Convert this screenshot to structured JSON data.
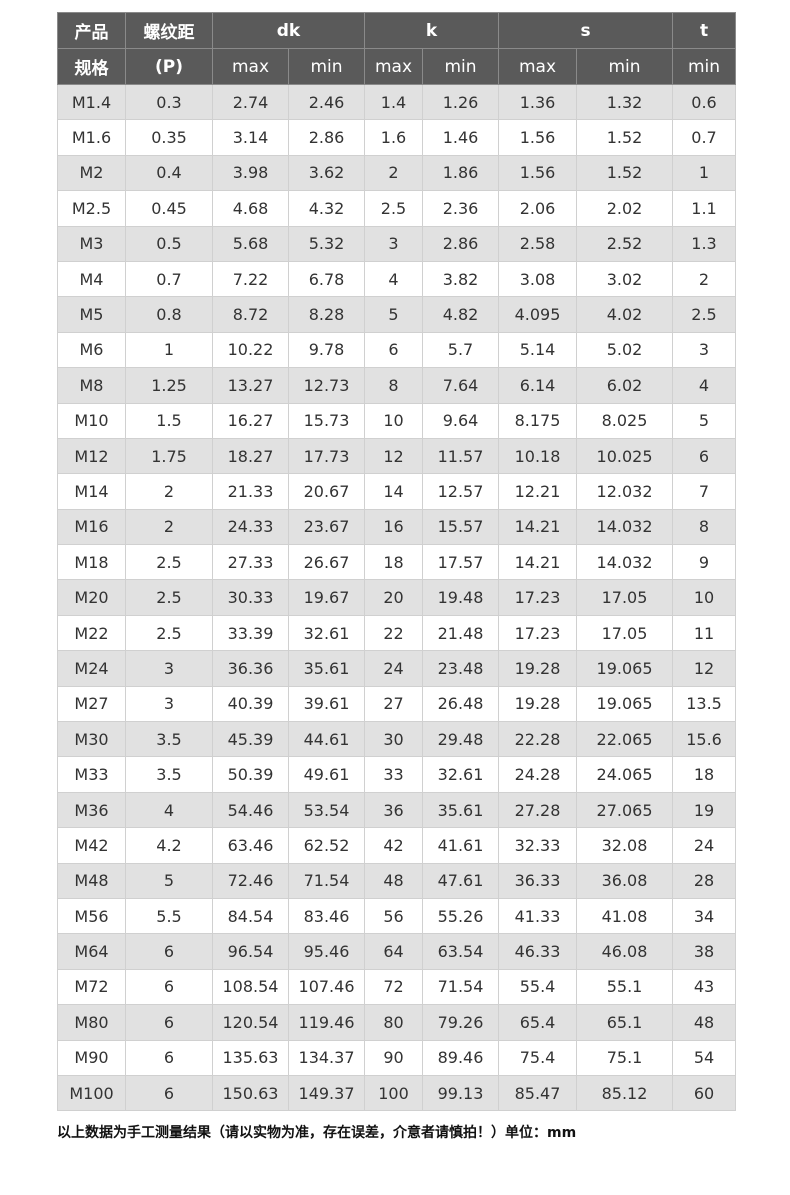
{
  "header": {
    "spec": "产品规格",
    "spec1": "产品",
    "spec2": "规格",
    "pitch1": "螺纹距",
    "pitch2": "(P)",
    "dk": "dk",
    "k": "k",
    "s": "s",
    "t": "t",
    "sub": [
      "max",
      "min",
      "max",
      "min",
      "max",
      "min",
      "min"
    ]
  },
  "rows": [
    [
      "M1.4",
      "0.3",
      "2.74",
      "2.46",
      "1.4",
      "1.26",
      "1.36",
      "1.32",
      "0.6"
    ],
    [
      "M1.6",
      "0.35",
      "3.14",
      "2.86",
      "1.6",
      "1.46",
      "1.56",
      "1.52",
      "0.7"
    ],
    [
      "M2",
      "0.4",
      "3.98",
      "3.62",
      "2",
      "1.86",
      "1.56",
      "1.52",
      "1"
    ],
    [
      "M2.5",
      "0.45",
      "4.68",
      "4.32",
      "2.5",
      "2.36",
      "2.06",
      "2.02",
      "1.1"
    ],
    [
      "M3",
      "0.5",
      "5.68",
      "5.32",
      "3",
      "2.86",
      "2.58",
      "2.52",
      "1.3"
    ],
    [
      "M4",
      "0.7",
      "7.22",
      "6.78",
      "4",
      "3.82",
      "3.08",
      "3.02",
      "2"
    ],
    [
      "M5",
      "0.8",
      "8.72",
      "8.28",
      "5",
      "4.82",
      "4.095",
      "4.02",
      "2.5"
    ],
    [
      "M6",
      "1",
      "10.22",
      "9.78",
      "6",
      "5.7",
      "5.14",
      "5.02",
      "3"
    ],
    [
      "M8",
      "1.25",
      "13.27",
      "12.73",
      "8",
      "7.64",
      "6.14",
      "6.02",
      "4"
    ],
    [
      "M10",
      "1.5",
      "16.27",
      "15.73",
      "10",
      "9.64",
      "8.175",
      "8.025",
      "5"
    ],
    [
      "M12",
      "1.75",
      "18.27",
      "17.73",
      "12",
      "11.57",
      "10.18",
      "10.025",
      "6"
    ],
    [
      "M14",
      "2",
      "21.33",
      "20.67",
      "14",
      "12.57",
      "12.21",
      "12.032",
      "7"
    ],
    [
      "M16",
      "2",
      "24.33",
      "23.67",
      "16",
      "15.57",
      "14.21",
      "14.032",
      "8"
    ],
    [
      "M18",
      "2.5",
      "27.33",
      "26.67",
      "18",
      "17.57",
      "14.21",
      "14.032",
      "9"
    ],
    [
      "M20",
      "2.5",
      "30.33",
      "19.67",
      "20",
      "19.48",
      "17.23",
      "17.05",
      "10"
    ],
    [
      "M22",
      "2.5",
      "33.39",
      "32.61",
      "22",
      "21.48",
      "17.23",
      "17.05",
      "11"
    ],
    [
      "M24",
      "3",
      "36.36",
      "35.61",
      "24",
      "23.48",
      "19.28",
      "19.065",
      "12"
    ],
    [
      "M27",
      "3",
      "40.39",
      "39.61",
      "27",
      "26.48",
      "19.28",
      "19.065",
      "13.5"
    ],
    [
      "M30",
      "3.5",
      "45.39",
      "44.61",
      "30",
      "29.48",
      "22.28",
      "22.065",
      "15.6"
    ],
    [
      "M33",
      "3.5",
      "50.39",
      "49.61",
      "33",
      "32.61",
      "24.28",
      "24.065",
      "18"
    ],
    [
      "M36",
      "4",
      "54.46",
      "53.54",
      "36",
      "35.61",
      "27.28",
      "27.065",
      "19"
    ],
    [
      "M42",
      "4.2",
      "63.46",
      "62.52",
      "42",
      "41.61",
      "32.33",
      "32.08",
      "24"
    ],
    [
      "M48",
      "5",
      "72.46",
      "71.54",
      "48",
      "47.61",
      "36.33",
      "36.08",
      "28"
    ],
    [
      "M56",
      "5.5",
      "84.54",
      "83.46",
      "56",
      "55.26",
      "41.33",
      "41.08",
      "34"
    ],
    [
      "M64",
      "6",
      "96.54",
      "95.46",
      "64",
      "63.54",
      "46.33",
      "46.08",
      "38"
    ],
    [
      "M72",
      "6",
      "108.54",
      "107.46",
      "72",
      "71.54",
      "55.4",
      "55.1",
      "43"
    ],
    [
      "M80",
      "6",
      "120.54",
      "119.46",
      "80",
      "79.26",
      "65.4",
      "65.1",
      "48"
    ],
    [
      "M90",
      "6",
      "135.63",
      "134.37",
      "90",
      "89.46",
      "75.4",
      "75.1",
      "54"
    ],
    [
      "M100",
      "6",
      "150.63",
      "149.37",
      "100",
      "99.13",
      "85.47",
      "85.12",
      "60"
    ]
  ],
  "note": "以上数据为手工测量结果（请以实物为准，存在误差，介意者请慎拍！）单位：mm",
  "colors": {
    "header_bg": "#5a5a5a",
    "stripe": "#e1e1e1"
  }
}
